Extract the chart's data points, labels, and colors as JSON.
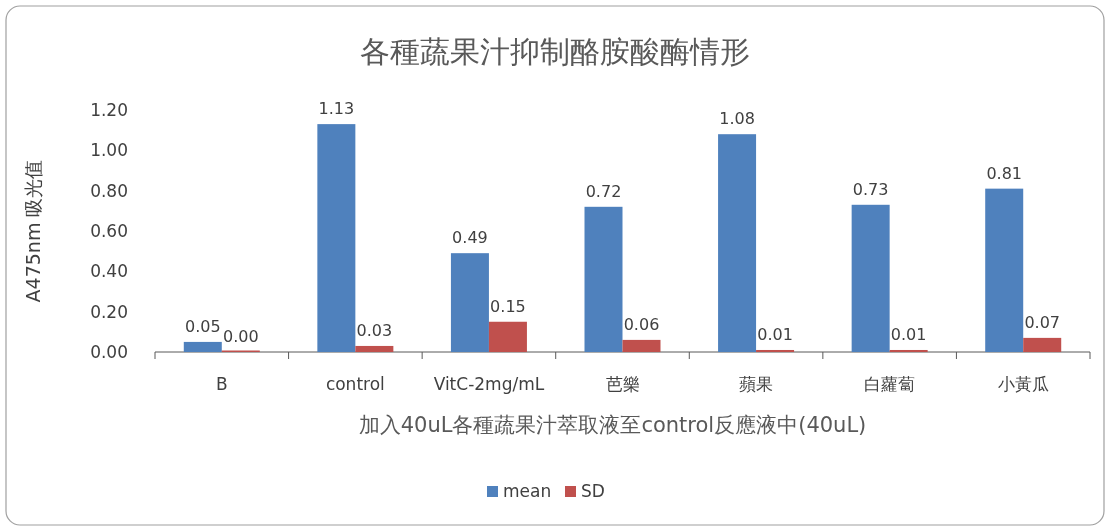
{
  "chart_data": {
    "type": "bar",
    "title": "各種蔬果汁抑制酪胺酸酶情形",
    "xlabel": "加入40uL各種蔬果汁萃取液至control反應液中(40uL)",
    "ylabel": "A475nm 吸光值",
    "categories": [
      "B",
      "control",
      "VitC-2mg/mL",
      "芭樂",
      "蘋果",
      "白蘿蔔",
      "小黃瓜"
    ],
    "series": [
      {
        "name": "mean",
        "color": "#4f81bd",
        "values": [
          0.05,
          1.13,
          0.49,
          0.72,
          1.08,
          0.73,
          0.81
        ],
        "value_labels": [
          "0.05",
          "1.13",
          "0.49",
          "0.72",
          "1.08",
          "0.73",
          "0.81"
        ]
      },
      {
        "name": "SD",
        "color": "#c0504d",
        "values": [
          0.0,
          0.03,
          0.15,
          0.06,
          0.01,
          0.01,
          0.07
        ],
        "value_labels": [
          "0.00",
          "0.03",
          "0.15",
          "0.06",
          "0.01",
          "0.01",
          "0.07"
        ]
      }
    ],
    "ylim": [
      0,
      1.2
    ],
    "yticks": [
      {
        "value": 0,
        "label": "0.00"
      },
      {
        "value": 0.2,
        "label": "0.20"
      },
      {
        "value": 0.4,
        "label": "0.40"
      },
      {
        "value": 0.6,
        "label": "0.60"
      },
      {
        "value": 0.8,
        "label": "0.80"
      },
      {
        "value": 1.0,
        "label": "1.00"
      },
      {
        "value": 1.2,
        "label": "1.20"
      }
    ],
    "grid": false,
    "legend": "bottom"
  }
}
